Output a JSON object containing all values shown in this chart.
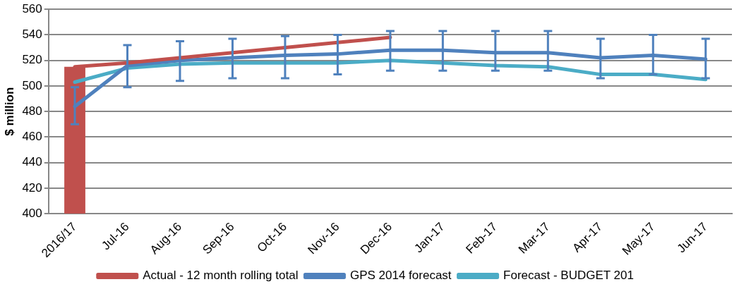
{
  "chart_data": {
    "type": "line",
    "ylabel": "$ million",
    "categories": [
      "2016/17",
      "Jul-16",
      "Aug-16",
      "Sep-16",
      "Oct-16",
      "Nov-16",
      "Dec-16",
      "Jan-17",
      "Feb-17",
      "Mar-17",
      "Apr-17",
      "May-17",
      "Jun-17"
    ],
    "series": [
      {
        "type": "bar",
        "color": "#c0504d",
        "values": [
          515,
          null,
          null,
          null,
          null,
          null,
          null,
          null,
          null,
          null,
          null,
          null,
          null
        ]
      },
      {
        "name": "Actual - 12 month rolling total",
        "color": "#c0504d",
        "values": [
          515,
          518,
          522,
          526,
          530,
          534,
          538,
          null,
          null,
          null,
          null,
          null,
          null
        ]
      },
      {
        "name": "GPS 2014 forecast",
        "color": "#4f81bd",
        "values": [
          484,
          516,
          520,
          522,
          524,
          525,
          528,
          528,
          526,
          526,
          522,
          524,
          521
        ],
        "errors": [
          [
            470,
            499
          ],
          [
            499,
            532
          ],
          [
            504,
            535
          ],
          [
            506,
            537
          ],
          [
            506,
            539
          ],
          [
            509,
            540
          ],
          [
            512,
            543
          ],
          [
            512,
            543
          ],
          [
            512,
            543
          ],
          [
            512,
            543
          ],
          [
            506,
            537
          ],
          [
            509,
            540
          ],
          [
            506,
            537
          ]
        ]
      },
      {
        "name": "Forecast - BUDGET 201",
        "color": "#4bacc6",
        "values": [
          503,
          514,
          517,
          518,
          518,
          518,
          520,
          518,
          516,
          515,
          509,
          509,
          505
        ]
      }
    ],
    "ylim": [
      400,
      560
    ],
    "yticks": [
      400,
      420,
      440,
      460,
      480,
      500,
      520,
      540,
      560
    ],
    "grid": "y",
    "legend": "bottom",
    "marker": "none"
  }
}
